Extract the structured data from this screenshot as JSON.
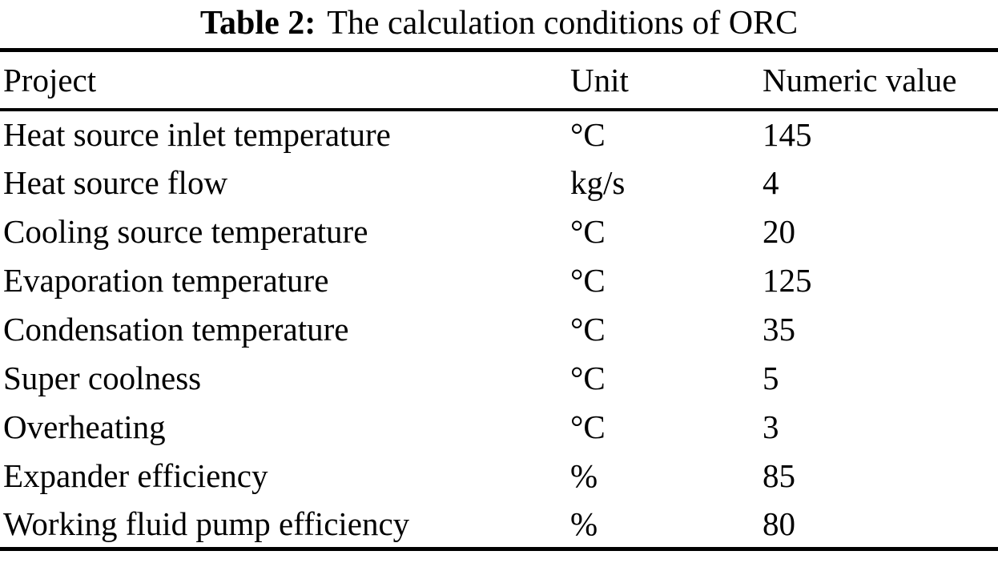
{
  "table": {
    "caption": {
      "label": "Table 2:",
      "text": "The calculation conditions of ORC"
    },
    "columns": {
      "project": "Project",
      "unit": "Unit",
      "value": "Numeric value"
    },
    "rows": [
      {
        "project": "Heat source inlet temperature",
        "unit": "°C",
        "value": "145"
      },
      {
        "project": "Heat source flow",
        "unit": "kg/s",
        "value": "4"
      },
      {
        "project": "Cooling source temperature",
        "unit": "°C",
        "value": "20"
      },
      {
        "project": "Evaporation temperature",
        "unit": "°C",
        "value": "125"
      },
      {
        "project": "Condensation temperature",
        "unit": "°C",
        "value": "35"
      },
      {
        "project": "Super coolness",
        "unit": "°C",
        "value": "5"
      },
      {
        "project": "Overheating",
        "unit": "°C",
        "value": "3"
      },
      {
        "project": "Expander efficiency",
        "unit": "%",
        "value": "85"
      },
      {
        "project": "Working fluid pump efficiency",
        "unit": "%",
        "value": "80"
      }
    ],
    "colors": {
      "text": "#000000",
      "background": "#ffffff",
      "rule": "#000000"
    }
  },
  "chart_data": {
    "type": "table",
    "title": "Table 2: The calculation conditions of ORC",
    "columns": [
      "Project",
      "Unit",
      "Numeric value"
    ],
    "rows": [
      [
        "Heat source inlet temperature",
        "°C",
        145
      ],
      [
        "Heat source flow",
        "kg/s",
        4
      ],
      [
        "Cooling source temperature",
        "°C",
        20
      ],
      [
        "Evaporation temperature",
        "°C",
        125
      ],
      [
        "Condensation temperature",
        "°C",
        35
      ],
      [
        "Super coolness",
        "°C",
        5
      ],
      [
        "Overheating",
        "°C",
        3
      ],
      [
        "Expander efficiency",
        "%",
        85
      ],
      [
        "Working fluid pump efficiency",
        "%",
        80
      ]
    ]
  }
}
